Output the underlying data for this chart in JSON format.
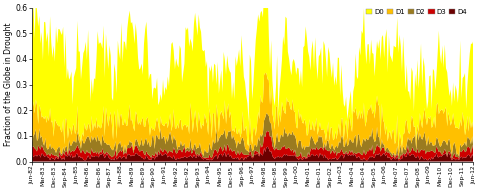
{
  "title": "",
  "ylabel": "Fraction of the Globe in Drought",
  "xlabel": "",
  "ylim": [
    0,
    0.6
  ],
  "yticks": [
    0.0,
    0.1,
    0.2,
    0.3,
    0.4,
    0.5,
    0.6
  ],
  "colors": {
    "D0": "#FFFF00",
    "D1": "#FFC000",
    "D2": "#9A7B20",
    "D3": "#CC0000",
    "D4": "#6B0000"
  },
  "legend_labels": [
    "D0",
    "D1",
    "D2",
    "D3",
    "D4"
  ],
  "n_points": 372,
  "background_color": "#ffffff",
  "figsize": [
    4.8,
    1.91
  ],
  "dpi": 100,
  "tick_labels": [
    "Jun-82",
    "Mar-83",
    "Dec-83",
    "Sep-84",
    "Jun-85",
    "Mar-86",
    "Dec-86",
    "Sep-87",
    "Jun-88",
    "Mar-89",
    "Dec-89",
    "Sep-90",
    "Jun-91",
    "Mar-92",
    "Dec-92",
    "Sep-93",
    "Jun-94",
    "Mar-95",
    "Dec-95",
    "Sep-96",
    "Jun-97",
    "Mar-98",
    "Dec-98",
    "Sep-99",
    "Jun-00",
    "Mar-01",
    "Dec-01",
    "Sep-02",
    "Jun-03",
    "Mar-04",
    "Dec-04",
    "Sep-05",
    "Jun-06",
    "Mar-07",
    "Dec-07",
    "Sep-08",
    "Jun-09",
    "Mar-10",
    "Dec-10",
    "Sep-11",
    "Jun-12"
  ]
}
